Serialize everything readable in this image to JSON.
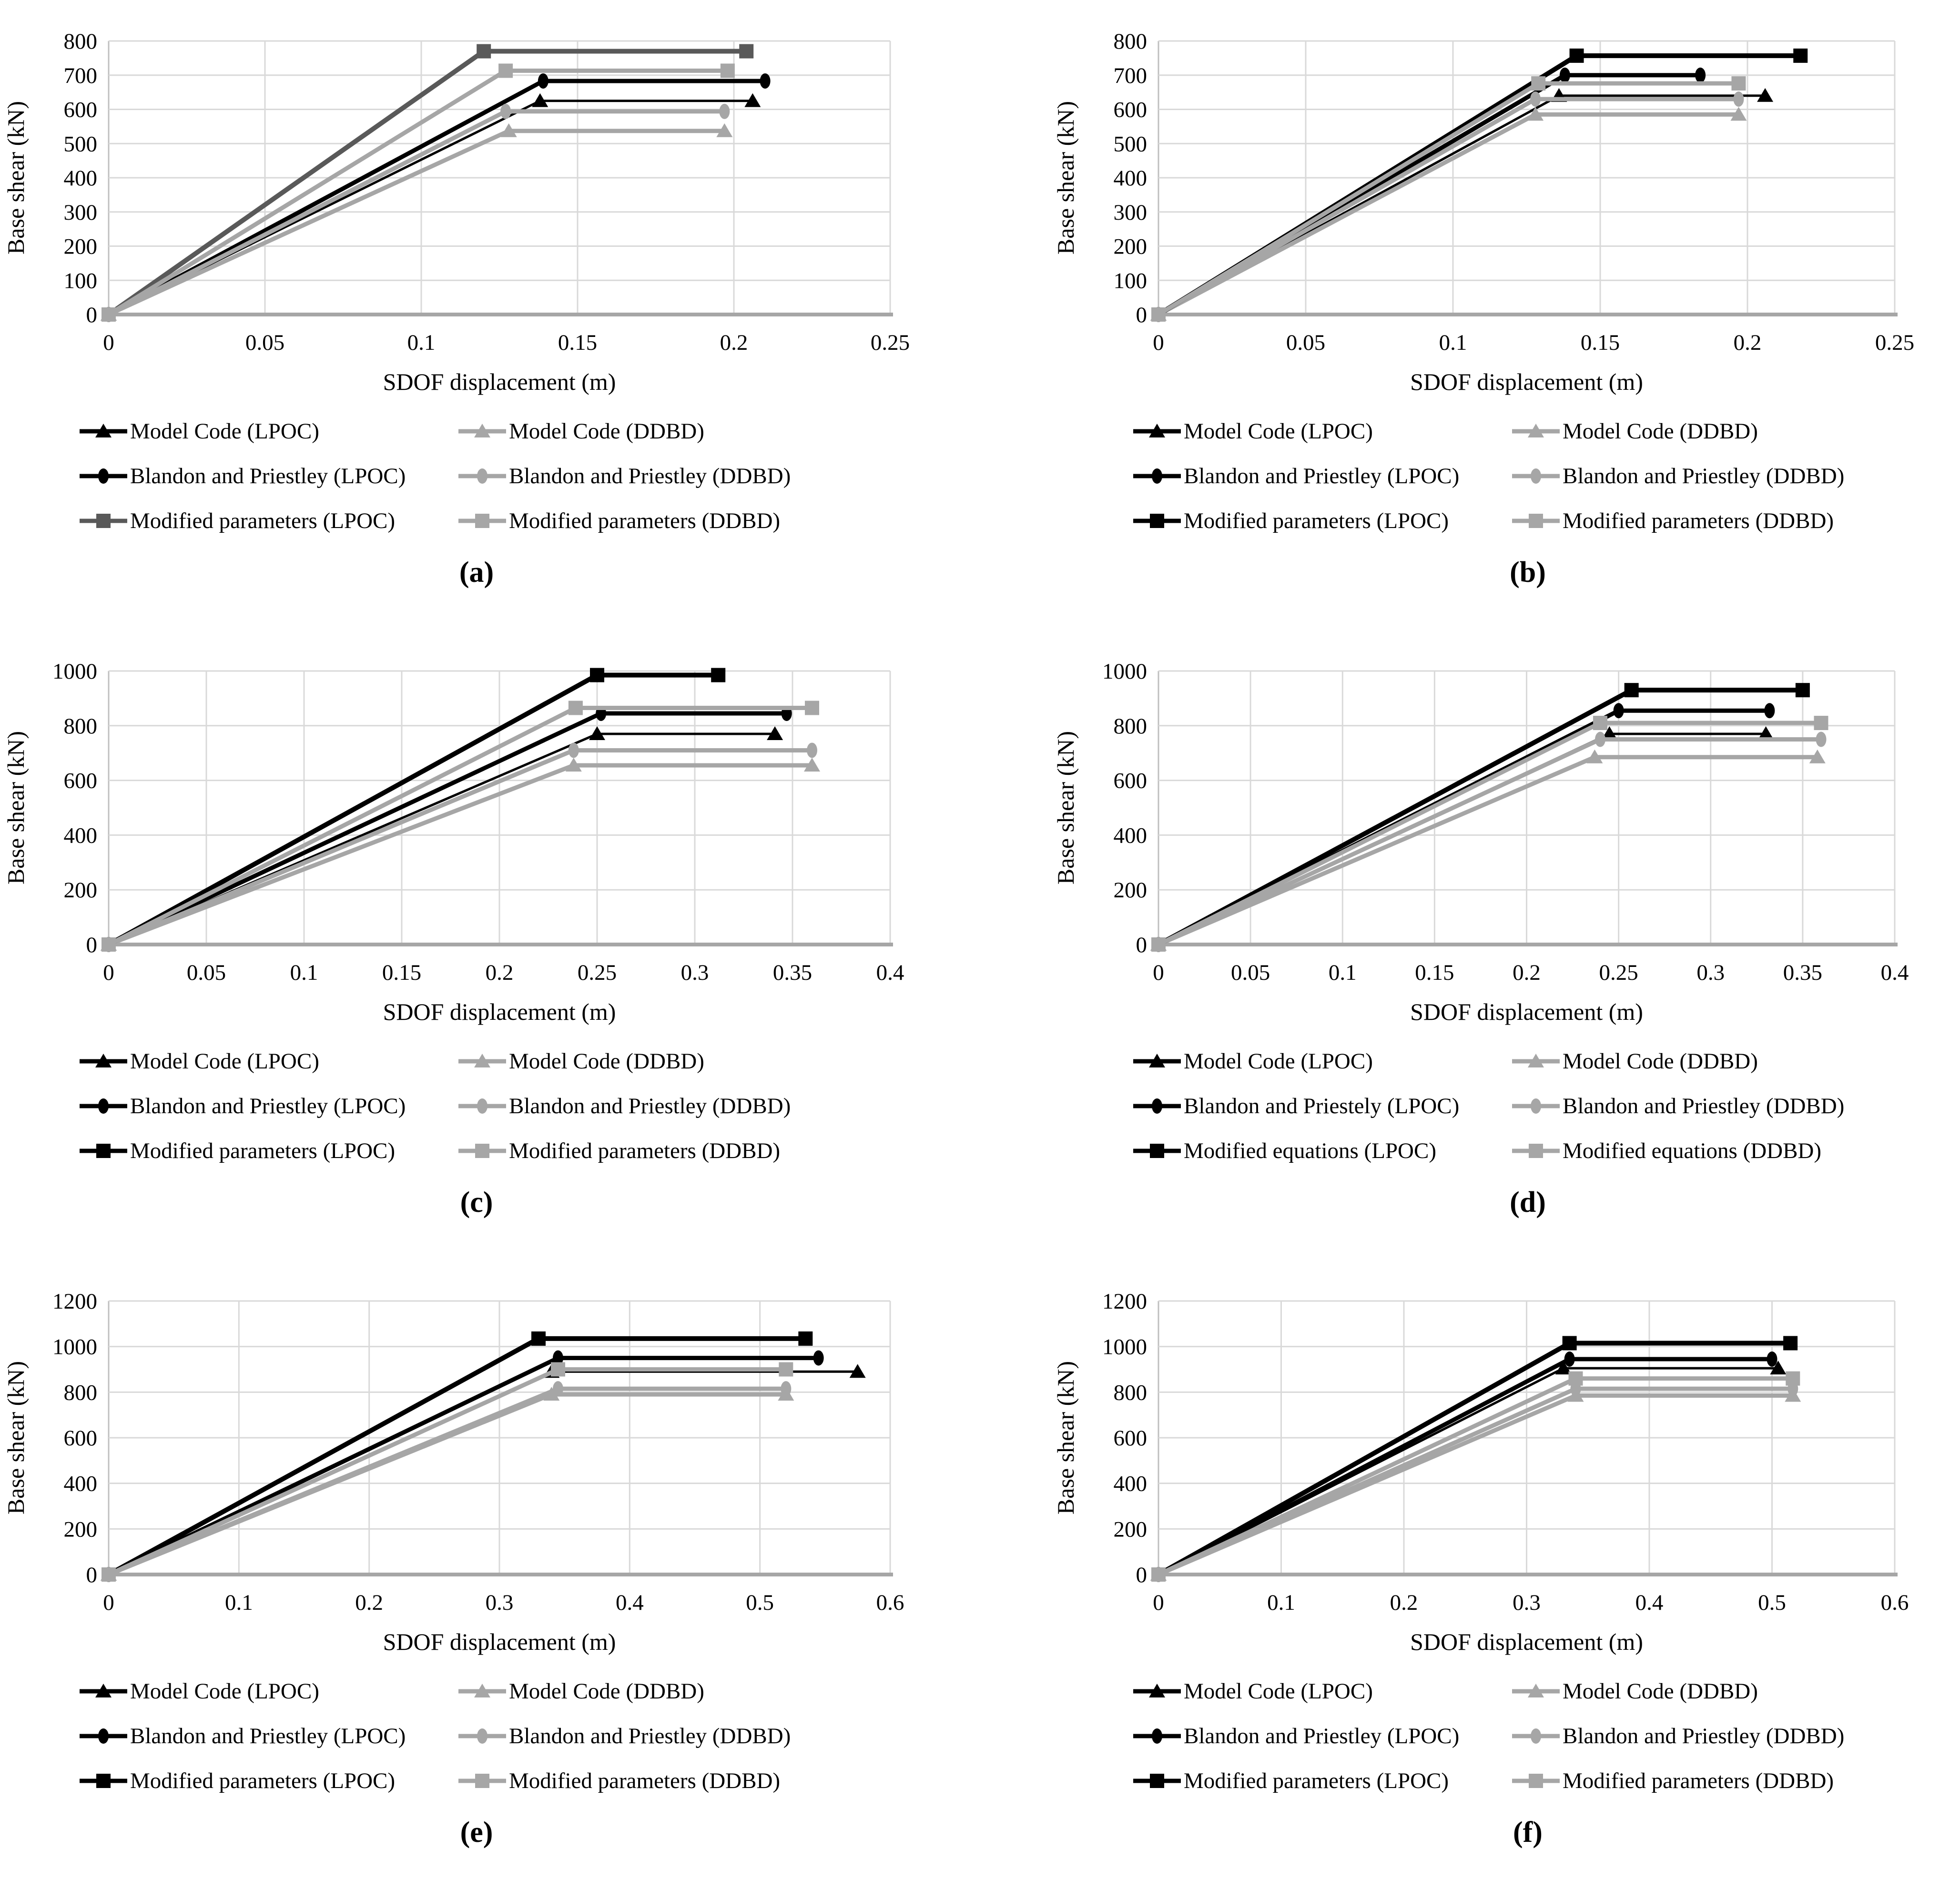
{
  "figure": {
    "xlabel": "SDOF displacement (m)",
    "ylabel": "Base shear (kN)",
    "colors": {
      "black": "#000000",
      "gray": "#a6a6a6",
      "dark_gray": "#595959",
      "gridline": "#d9d9d9",
      "axis_line": "#bfbfbf",
      "baseline": "#a6a6a6",
      "background": "#ffffff"
    }
  },
  "chart_data": [
    {
      "id": "a",
      "panel_label": "(a)",
      "type": "line",
      "xlabel": "SDOF displacement (m)",
      "ylabel": "Base shear (kN)",
      "xlim": [
        0,
        0.25
      ],
      "xticks": [
        0,
        0.05,
        0.1,
        0.15,
        0.2,
        0.25
      ],
      "xtick_labels": [
        "0",
        "0.05",
        "0.1",
        "0.15",
        "0.2",
        "0.25"
      ],
      "ylim": [
        0,
        800
      ],
      "yticks": [
        0,
        100,
        200,
        300,
        400,
        500,
        600,
        700,
        800
      ],
      "ytick_labels": [
        "0",
        "100",
        "200",
        "300",
        "400",
        "500",
        "600",
        "700",
        "800"
      ],
      "grid": true,
      "legend_position": "below",
      "series": [
        {
          "name": "Model Code (LPOC)",
          "marker": "triangle",
          "color": "#000000",
          "line_width": 5,
          "points": [
            [
              0,
              0
            ],
            [
              0.138,
              625
            ],
            [
              0.206,
              625
            ]
          ]
        },
        {
          "name": "Model Code (DDBD)",
          "marker": "triangle",
          "color": "#a6a6a6",
          "line_width": 9,
          "points": [
            [
              0,
              0
            ],
            [
              0.128,
              537
            ],
            [
              0.197,
              537
            ]
          ]
        },
        {
          "name": "Blandon and Priestley (LPOC)",
          "marker": "circle",
          "color": "#000000",
          "line_width": 9,
          "points": [
            [
              0,
              0
            ],
            [
              0.139,
              683
            ],
            [
              0.21,
              683
            ]
          ]
        },
        {
          "name": "Blandon and Priestley (DDBD)",
          "marker": "circle",
          "color": "#a6a6a6",
          "line_width": 9,
          "points": [
            [
              0,
              0
            ],
            [
              0.127,
              594
            ],
            [
              0.197,
              594
            ]
          ]
        },
        {
          "name": "Modified parameters (LPOC)",
          "marker": "square",
          "color": "#595959",
          "line_width": 10,
          "points": [
            [
              0,
              0
            ],
            [
              0.12,
              770
            ],
            [
              0.204,
              770
            ]
          ]
        },
        {
          "name": "Modified parameters (DDBD)",
          "marker": "square",
          "color": "#a6a6a6",
          "line_width": 9,
          "points": [
            [
              0,
              0
            ],
            [
              0.127,
              713
            ],
            [
              0.198,
              713
            ]
          ]
        }
      ]
    },
    {
      "id": "b",
      "panel_label": "(b)",
      "type": "line",
      "xlabel": "SDOF displacement (m)",
      "ylabel": "Base shear (kN)",
      "xlim": [
        0,
        0.25
      ],
      "xticks": [
        0,
        0.05,
        0.1,
        0.15,
        0.2,
        0.25
      ],
      "xtick_labels": [
        "0",
        "0.05",
        "0.1",
        "0.15",
        "0.2",
        "0.25"
      ],
      "ylim": [
        0,
        800
      ],
      "yticks": [
        0,
        100,
        200,
        300,
        400,
        500,
        600,
        700,
        800
      ],
      "ytick_labels": [
        "0",
        "100",
        "200",
        "300",
        "400",
        "500",
        "600",
        "700",
        "800"
      ],
      "grid": true,
      "legend_position": "below",
      "series": [
        {
          "name": "Model Code (LPOC)",
          "marker": "triangle",
          "color": "#000000",
          "line_width": 5,
          "points": [
            [
              0,
              0
            ],
            [
              0.136,
              640
            ],
            [
              0.206,
              640
            ]
          ]
        },
        {
          "name": "Model Code (DDBD)",
          "marker": "triangle",
          "color": "#a6a6a6",
          "line_width": 9,
          "points": [
            [
              0,
              0
            ],
            [
              0.128,
              585
            ],
            [
              0.197,
              585
            ]
          ]
        },
        {
          "name": "Blandon and Priestley (LPOC)",
          "marker": "circle",
          "color": "#000000",
          "line_width": 9,
          "points": [
            [
              0,
              0
            ],
            [
              0.138,
              700
            ],
            [
              0.184,
              700
            ]
          ]
        },
        {
          "name": "Blandon and Priestley (DDBD)",
          "marker": "circle",
          "color": "#a6a6a6",
          "line_width": 9,
          "points": [
            [
              0,
              0
            ],
            [
              0.128,
              630
            ],
            [
              0.197,
              630
            ]
          ]
        },
        {
          "name": "Modified parameters (LPOC)",
          "marker": "square",
          "color": "#000000",
          "line_width": 10,
          "points": [
            [
              0,
              0
            ],
            [
              0.142,
              757
            ],
            [
              0.218,
              757
            ]
          ]
        },
        {
          "name": "Modified parameters (DDBD)",
          "marker": "square",
          "color": "#a6a6a6",
          "line_width": 9,
          "points": [
            [
              0,
              0
            ],
            [
              0.129,
              676
            ],
            [
              0.197,
              676
            ]
          ]
        }
      ]
    },
    {
      "id": "c",
      "panel_label": "(c)",
      "type": "line",
      "xlabel": "SDOF displacement (m)",
      "ylabel": "Base shear (kN)",
      "xlim": [
        0,
        0.4
      ],
      "xticks": [
        0,
        0.05,
        0.1,
        0.15,
        0.2,
        0.25,
        0.3,
        0.35,
        0.4
      ],
      "xtick_labels": [
        "0",
        "0.05",
        "0.1",
        "0.15",
        "0.2",
        "0.25",
        "0.3",
        "0.35",
        "0.4"
      ],
      "ylim": [
        0,
        1000
      ],
      "yticks": [
        0,
        200,
        400,
        600,
        800,
        1000
      ],
      "ytick_labels": [
        "0",
        "200",
        "400",
        "600",
        "800",
        "1000"
      ],
      "grid": true,
      "legend_position": "below",
      "series": [
        {
          "name": "Model Code (LPOC)",
          "marker": "triangle",
          "color": "#000000",
          "line_width": 5,
          "points": [
            [
              0,
              0
            ],
            [
              0.25,
              770
            ],
            [
              0.341,
              770
            ]
          ]
        },
        {
          "name": "Model Code (DDBD)",
          "marker": "triangle",
          "color": "#a6a6a6",
          "line_width": 9,
          "points": [
            [
              0,
              0
            ],
            [
              0.238,
              655
            ],
            [
              0.36,
              655
            ]
          ]
        },
        {
          "name": "Blandon and Priestley (LPOC)",
          "marker": "circle",
          "color": "#000000",
          "line_width": 9,
          "points": [
            [
              0,
              0
            ],
            [
              0.252,
              845
            ],
            [
              0.347,
              845
            ]
          ]
        },
        {
          "name": "Blandon and Priestley (DDBD)",
          "marker": "circle",
          "color": "#a6a6a6",
          "line_width": 9,
          "points": [
            [
              0,
              0
            ],
            [
              0.238,
              710
            ],
            [
              0.36,
              710
            ]
          ]
        },
        {
          "name": "Modified parameters (LPOC)",
          "marker": "square",
          "color": "#000000",
          "line_width": 10,
          "points": [
            [
              0,
              0
            ],
            [
              0.25,
              985
            ],
            [
              0.312,
              985
            ]
          ]
        },
        {
          "name": "Modified parameters (DDBD)",
          "marker": "square",
          "color": "#a6a6a6",
          "line_width": 9,
          "points": [
            [
              0,
              0
            ],
            [
              0.239,
              865
            ],
            [
              0.36,
              865
            ]
          ]
        }
      ]
    },
    {
      "id": "d",
      "panel_label": "(d)",
      "type": "line",
      "xlabel": "SDOF displacement (m)",
      "ylabel": "Base shear (kN)",
      "xlim": [
        0,
        0.4
      ],
      "xticks": [
        0,
        0.05,
        0.1,
        0.15,
        0.2,
        0.25,
        0.3,
        0.35,
        0.4
      ],
      "xtick_labels": [
        "0",
        "0.05",
        "0.1",
        "0.15",
        "0.2",
        "0.25",
        "0.3",
        "0.35",
        "0.4"
      ],
      "ylim": [
        0,
        1000
      ],
      "yticks": [
        0,
        200,
        400,
        600,
        800,
        1000
      ],
      "ytick_labels": [
        "0",
        "200",
        "400",
        "600",
        "800",
        "1000"
      ],
      "grid": true,
      "legend_position": "below",
      "series": [
        {
          "name": "Model Code (LPOC)",
          "marker": "triangle",
          "color": "#000000",
          "line_width": 5,
          "points": [
            [
              0,
              0
            ],
            [
              0.245,
              770
            ],
            [
              0.33,
              770
            ]
          ]
        },
        {
          "name": "Model Code (DDBD)",
          "marker": "triangle",
          "color": "#a6a6a6",
          "line_width": 9,
          "points": [
            [
              0,
              0
            ],
            [
              0.237,
              685
            ],
            [
              0.358,
              685
            ]
          ]
        },
        {
          "name": "Blandon and Priestely (LPOC)",
          "marker": "circle",
          "color": "#000000",
          "line_width": 9,
          "points": [
            [
              0,
              0
            ],
            [
              0.25,
              855
            ],
            [
              0.332,
              855
            ]
          ]
        },
        {
          "name": "Blandon and Priestley (DDBD)",
          "marker": "circle",
          "color": "#a6a6a6",
          "line_width": 9,
          "points": [
            [
              0,
              0
            ],
            [
              0.24,
              750
            ],
            [
              0.36,
              750
            ]
          ]
        },
        {
          "name": "Modified equations (LPOC)",
          "marker": "square",
          "color": "#000000",
          "line_width": 10,
          "points": [
            [
              0,
              0
            ],
            [
              0.257,
              930
            ],
            [
              0.35,
              930
            ]
          ]
        },
        {
          "name": "Modified equations (DDBD)",
          "marker": "square",
          "color": "#a6a6a6",
          "line_width": 9,
          "points": [
            [
              0,
              0
            ],
            [
              0.24,
              810
            ],
            [
              0.36,
              810
            ]
          ]
        }
      ]
    },
    {
      "id": "e",
      "panel_label": "(e)",
      "type": "line",
      "xlabel": "SDOF displacement (m)",
      "ylabel": "Base shear (kN)",
      "xlim": [
        0,
        0.6
      ],
      "xticks": [
        0,
        0.1,
        0.2,
        0.3,
        0.4,
        0.5,
        0.6
      ],
      "xtick_labels": [
        "0",
        "0.1",
        "0.2",
        "0.3",
        "0.4",
        "0.5",
        "0.6"
      ],
      "ylim": [
        0,
        1200
      ],
      "yticks": [
        0,
        200,
        400,
        600,
        800,
        1000,
        1200
      ],
      "ytick_labels": [
        "0",
        "200",
        "400",
        "600",
        "800",
        "1000",
        "1200"
      ],
      "grid": true,
      "legend_position": "below",
      "series": [
        {
          "name": "Model Code (LPOC)",
          "marker": "triangle",
          "color": "#000000",
          "line_width": 5,
          "points": [
            [
              0,
              0
            ],
            [
              0.34,
              890
            ],
            [
              0.575,
              890
            ]
          ]
        },
        {
          "name": "Model Code (DDBD)",
          "marker": "triangle",
          "color": "#a6a6a6",
          "line_width": 9,
          "points": [
            [
              0,
              0
            ],
            [
              0.34,
              790
            ],
            [
              0.52,
              790
            ]
          ]
        },
        {
          "name": "Blandon and Priestley (LPOC)",
          "marker": "circle",
          "color": "#000000",
          "line_width": 9,
          "points": [
            [
              0,
              0
            ],
            [
              0.345,
              950
            ],
            [
              0.545,
              950
            ]
          ]
        },
        {
          "name": "Blandon and Priestley (DDBD)",
          "marker": "circle",
          "color": "#a6a6a6",
          "line_width": 9,
          "points": [
            [
              0,
              0
            ],
            [
              0.345,
              815
            ],
            [
              0.52,
              815
            ]
          ]
        },
        {
          "name": "Modified parameters (LPOC)",
          "marker": "square",
          "color": "#000000",
          "line_width": 10,
          "points": [
            [
              0,
              0
            ],
            [
              0.33,
              1035
            ],
            [
              0.535,
              1035
            ]
          ]
        },
        {
          "name": "Modified parameters (DDBD)",
          "marker": "square",
          "color": "#a6a6a6",
          "line_width": 9,
          "points": [
            [
              0,
              0
            ],
            [
              0.345,
              900
            ],
            [
              0.52,
              900
            ]
          ]
        }
      ]
    },
    {
      "id": "f",
      "panel_label": "(f)",
      "type": "line",
      "xlabel": "SDOF displacement (m)",
      "ylabel": "Base shear (kN)",
      "xlim": [
        0,
        0.6
      ],
      "xticks": [
        0,
        0.1,
        0.2,
        0.3,
        0.4,
        0.5,
        0.6
      ],
      "xtick_labels": [
        "0",
        "0.1",
        "0.2",
        "0.3",
        "0.4",
        "0.5",
        "0.6"
      ],
      "ylim": [
        0,
        1200
      ],
      "yticks": [
        0,
        200,
        400,
        600,
        800,
        1000,
        1200
      ],
      "ytick_labels": [
        "0",
        "200",
        "400",
        "600",
        "800",
        "1000",
        "1200"
      ],
      "grid": true,
      "legend_position": "below",
      "series": [
        {
          "name": "Model Code (LPOC)",
          "marker": "triangle",
          "color": "#000000",
          "line_width": 5,
          "points": [
            [
              0,
              0
            ],
            [
              0.33,
              905
            ],
            [
              0.505,
              905
            ]
          ]
        },
        {
          "name": "Model Code (DDBD)",
          "marker": "triangle",
          "color": "#a6a6a6",
          "line_width": 9,
          "points": [
            [
              0,
              0
            ],
            [
              0.34,
              785
            ],
            [
              0.517,
              785
            ]
          ]
        },
        {
          "name": "Blandon and Priestley (LPOC)",
          "marker": "circle",
          "color": "#000000",
          "line_width": 9,
          "points": [
            [
              0,
              0
            ],
            [
              0.335,
              945
            ],
            [
              0.5,
              945
            ]
          ]
        },
        {
          "name": "Blandon and Priestley (DDBD)",
          "marker": "circle",
          "color": "#a6a6a6",
          "line_width": 9,
          "points": [
            [
              0,
              0
            ],
            [
              0.34,
              815
            ],
            [
              0.517,
              815
            ]
          ]
        },
        {
          "name": "Modified parameters (LPOC)",
          "marker": "square",
          "color": "#000000",
          "line_width": 10,
          "points": [
            [
              0,
              0
            ],
            [
              0.335,
              1015
            ],
            [
              0.515,
              1015
            ]
          ]
        },
        {
          "name": "Modified parameters (DDBD)",
          "marker": "square",
          "color": "#a6a6a6",
          "line_width": 9,
          "points": [
            [
              0,
              0
            ],
            [
              0.34,
              860
            ],
            [
              0.517,
              860
            ]
          ]
        }
      ]
    }
  ]
}
